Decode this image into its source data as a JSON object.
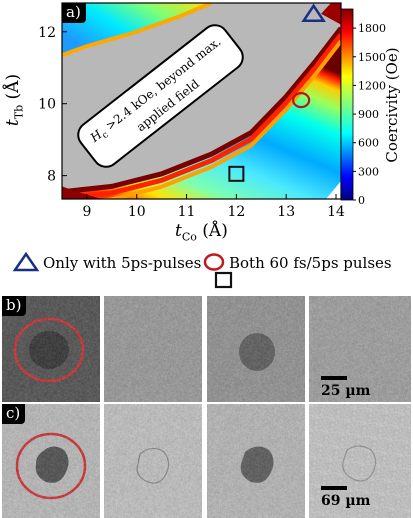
{
  "chart_data": {
    "type": "heatmap",
    "panel_label": "a)",
    "x_axis": {
      "label_main": "t",
      "label_sub": "Co",
      "label_unit": " (Å)",
      "range": [
        8.5,
        14.1
      ],
      "ticks": [
        "9",
        "10",
        "11",
        "12",
        "13",
        "14"
      ]
    },
    "y_axis": {
      "label_main": "t",
      "label_sub": "Tb",
      "label_unit": " (Å)",
      "range": [
        7.35,
        12.8
      ],
      "ticks": [
        "8",
        "10",
        "12"
      ]
    },
    "colorbar": {
      "label": "Coercivity (Oe)",
      "range": [
        0,
        2000
      ],
      "ticks": [
        "0",
        "300",
        "600",
        "900",
        "1200",
        "1500",
        "1800"
      ]
    },
    "saturated_region_note": "H c >2.4 kOe, beyond max. applied field",
    "note_prefix_main": "H",
    "note_prefix_sub": "c",
    "note_line1_rest": " >2.4 kOe, beyond max.",
    "note_line2": "applied field",
    "coercivity_band": [
      {
        "x": 8.5,
        "y_lower_edge": 11.35,
        "y_upper_edge": 12.8
      },
      {
        "x": 9.0,
        "y_lower_edge": 11.55,
        "y_upper_edge": 12.8
      },
      {
        "x": 10.0,
        "y_lower_edge": 11.95,
        "y_upper_edge": 12.8
      },
      {
        "x": 10.8,
        "y_lower_edge": 12.3,
        "y_upper_edge": 12.8
      },
      {
        "x": 11.4,
        "y_lower_edge": 12.8,
        "y_upper_edge": 12.8
      },
      {
        "x": 8.5,
        "y_upper_edge_low_band": 7.55
      },
      {
        "x": 10.0,
        "y_upper_edge_low_band": 7.85
      },
      {
        "x": 11.0,
        "y_upper_edge_low_band": 8.3
      },
      {
        "x": 12.0,
        "y_upper_edge_low_band": 9.0
      },
      {
        "x": 13.0,
        "y_upper_edge_low_band": 10.2
      },
      {
        "x": 14.0,
        "y_upper_edge_low_band": 12.0
      }
    ],
    "markers": [
      {
        "shape": "triangle",
        "color": "#1a2e86",
        "x": 13.55,
        "y": 12.5,
        "meaning": "Only with 5ps-pulses"
      },
      {
        "shape": "circle",
        "color": "#b5161c",
        "x": 13.3,
        "y": 10.1,
        "meaning": "Both 60 fs/5ps pulses"
      },
      {
        "shape": "square",
        "color": "#111111",
        "x": 12.0,
        "y": 8.05,
        "meaning": ""
      }
    ]
  },
  "legend": {
    "triangle_label": "Only with 5ps-pulses",
    "circle_label": "Both 60 fs/5ps pulses"
  },
  "panels": {
    "b": {
      "label": "b)",
      "scale": "25 µm"
    },
    "c": {
      "label": "c)",
      "scale": "69 µm"
    }
  },
  "colors": {
    "triangle": "#1a2e86",
    "circle": "#c0181e",
    "square": "#111111",
    "grey_region": "#b8b8b8"
  }
}
